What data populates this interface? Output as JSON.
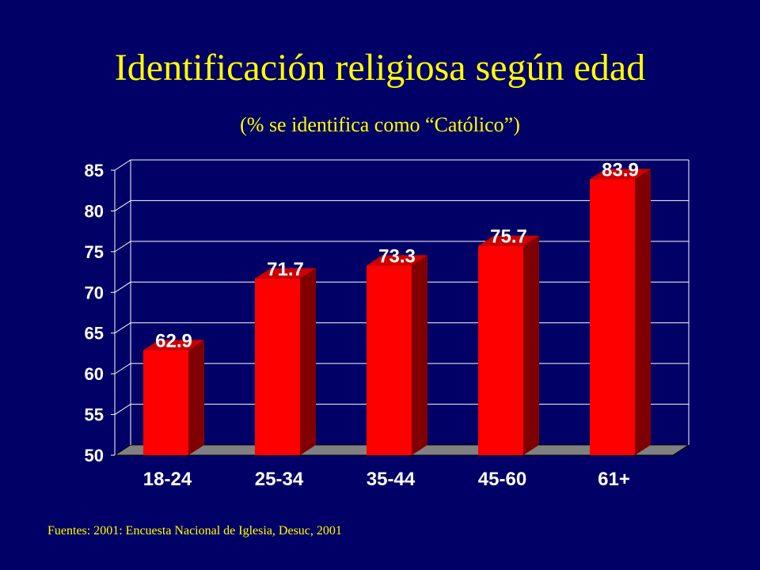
{
  "title": "Identificación religiosa según edad",
  "subtitle": "(%  se identifica como “Católico”)",
  "footer": "Fuentes:  2001: Encuesta Nacional de Iglesia, Desuc, 2001",
  "colors": {
    "background": "#000066",
    "title": "#ffff00",
    "bar_front": "#ff0000",
    "bar_side": "#800000",
    "bar_top": "#cc0000",
    "grid": "#ffffff",
    "floor": "#808080"
  },
  "chart_data": {
    "type": "bar",
    "categories": [
      "18-24",
      "25-34",
      "35-44",
      "45-60",
      "61+"
    ],
    "values": [
      62.9,
      71.7,
      73.3,
      75.7,
      83.9
    ],
    "data_labels": [
      "62.9",
      "71.7",
      "73.3",
      "75.7",
      "83.9"
    ],
    "ylim": [
      50,
      85
    ],
    "yticks": [
      "50",
      "55",
      "60",
      "65",
      "70",
      "75",
      "80",
      "85"
    ],
    "grid": true,
    "style": "3d"
  }
}
